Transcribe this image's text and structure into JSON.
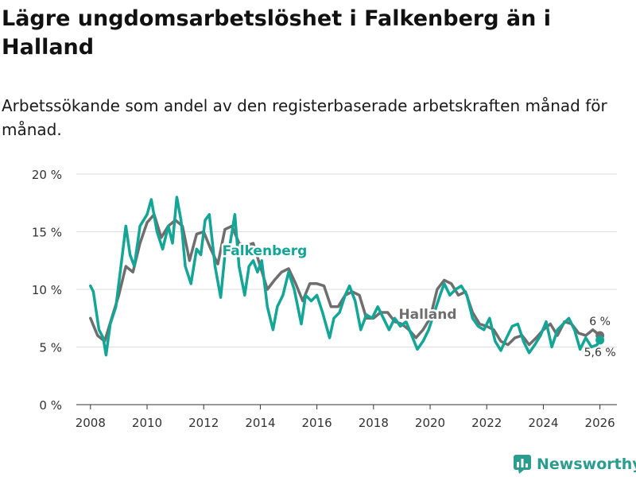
{
  "title": "Lägre ungdomsarbetslöshet i Falkenberg än i Halland",
  "subtitle": "Arbetssökande som andel av den registerbaserade arbetskraften månad för månad.",
  "brand": "Newsworthy",
  "colors": {
    "falkenberg": "#13a596",
    "halland": "#6e6e6e",
    "grid": "#dddddd",
    "brand": "#2a9d8f"
  },
  "chart_data": {
    "type": "line",
    "x_range": [
      2007.5,
      2026.6
    ],
    "ylim": [
      0,
      20
    ],
    "y_ticks": [
      0,
      5,
      10,
      15,
      20
    ],
    "y_tick_labels": [
      "0 %",
      "5 %",
      "10 %",
      "15 %",
      "20 %"
    ],
    "x_ticks": [
      2008,
      2010,
      2012,
      2014,
      2016,
      2018,
      2020,
      2022,
      2024,
      2026
    ],
    "x_tick_labels": [
      "2008",
      "2010",
      "2012",
      "2014",
      "2016",
      "2018",
      "2020",
      "2022",
      "2024",
      "2026"
    ],
    "series": [
      {
        "name": "Halland",
        "label": "Halland",
        "end_label": "6 %",
        "points": [
          [
            2008.0,
            7.5
          ],
          [
            2008.25,
            6.0
          ],
          [
            2008.5,
            5.5
          ],
          [
            2008.75,
            7.5
          ],
          [
            2009.0,
            9.5
          ],
          [
            2009.25,
            12.0
          ],
          [
            2009.5,
            11.5
          ],
          [
            2009.75,
            14.0
          ],
          [
            2010.0,
            15.8
          ],
          [
            2010.25,
            16.5
          ],
          [
            2010.5,
            14.5
          ],
          [
            2010.75,
            15.5
          ],
          [
            2011.0,
            16.0
          ],
          [
            2011.25,
            15.5
          ],
          [
            2011.5,
            12.5
          ],
          [
            2011.75,
            14.8
          ],
          [
            2012.0,
            15.0
          ],
          [
            2012.25,
            13.5
          ],
          [
            2012.5,
            12.2
          ],
          [
            2012.75,
            15.2
          ],
          [
            2013.0,
            15.5
          ],
          [
            2013.25,
            14.0
          ],
          [
            2013.5,
            13.8
          ],
          [
            2013.75,
            14.0
          ],
          [
            2014.0,
            12.0
          ],
          [
            2014.25,
            10.0
          ],
          [
            2014.5,
            10.8
          ],
          [
            2014.75,
            11.5
          ],
          [
            2015.0,
            11.8
          ],
          [
            2015.25,
            10.5
          ],
          [
            2015.5,
            9.0
          ],
          [
            2015.75,
            10.5
          ],
          [
            2016.0,
            10.5
          ],
          [
            2016.25,
            10.3
          ],
          [
            2016.5,
            8.5
          ],
          [
            2016.75,
            8.5
          ],
          [
            2017.0,
            9.5
          ],
          [
            2017.25,
            9.8
          ],
          [
            2017.5,
            9.5
          ],
          [
            2017.75,
            7.5
          ],
          [
            2018.0,
            7.5
          ],
          [
            2018.25,
            8.0
          ],
          [
            2018.5,
            8.0
          ],
          [
            2018.75,
            7.2
          ],
          [
            2019.0,
            7.0
          ],
          [
            2019.25,
            6.5
          ],
          [
            2019.5,
            5.8
          ],
          [
            2019.75,
            6.5
          ],
          [
            2020.0,
            7.5
          ],
          [
            2020.25,
            10.0
          ],
          [
            2020.5,
            10.8
          ],
          [
            2020.75,
            10.5
          ],
          [
            2021.0,
            9.5
          ],
          [
            2021.25,
            9.8
          ],
          [
            2021.5,
            8.0
          ],
          [
            2021.75,
            7.0
          ],
          [
            2022.0,
            6.8
          ],
          [
            2022.25,
            6.5
          ],
          [
            2022.5,
            5.5
          ],
          [
            2022.75,
            5.2
          ],
          [
            2023.0,
            5.8
          ],
          [
            2023.25,
            6.0
          ],
          [
            2023.5,
            5.2
          ],
          [
            2023.75,
            5.8
          ],
          [
            2024.0,
            6.5
          ],
          [
            2024.25,
            7.0
          ],
          [
            2024.5,
            6.0
          ],
          [
            2024.75,
            7.2
          ],
          [
            2025.0,
            7.0
          ],
          [
            2025.25,
            6.2
          ],
          [
            2025.5,
            6.0
          ],
          [
            2025.75,
            6.5
          ],
          [
            2026.0,
            6.0
          ]
        ]
      },
      {
        "name": "Falkenberg",
        "label": "Falkenberg",
        "end_label": "5,6 %",
        "points": [
          [
            2008.0,
            10.3
          ],
          [
            2008.1,
            9.8
          ],
          [
            2008.3,
            6.5
          ],
          [
            2008.45,
            5.8
          ],
          [
            2008.55,
            4.3
          ],
          [
            2008.7,
            7.0
          ],
          [
            2008.9,
            8.5
          ],
          [
            2009.1,
            12.5
          ],
          [
            2009.25,
            15.5
          ],
          [
            2009.4,
            13.0
          ],
          [
            2009.55,
            12.0
          ],
          [
            2009.75,
            15.5
          ],
          [
            2010.0,
            16.5
          ],
          [
            2010.15,
            17.8
          ],
          [
            2010.35,
            15.0
          ],
          [
            2010.55,
            13.5
          ],
          [
            2010.75,
            15.5
          ],
          [
            2010.9,
            14.0
          ],
          [
            2011.05,
            18.0
          ],
          [
            2011.2,
            16.0
          ],
          [
            2011.35,
            12.0
          ],
          [
            2011.55,
            10.5
          ],
          [
            2011.75,
            13.5
          ],
          [
            2011.9,
            13.0
          ],
          [
            2012.05,
            16.0
          ],
          [
            2012.2,
            16.5
          ],
          [
            2012.4,
            12.0
          ],
          [
            2012.6,
            9.3
          ],
          [
            2012.75,
            13.0
          ],
          [
            2012.9,
            13.5
          ],
          [
            2013.1,
            16.5
          ],
          [
            2013.25,
            12.0
          ],
          [
            2013.45,
            9.5
          ],
          [
            2013.6,
            12.0
          ],
          [
            2013.75,
            12.5
          ],
          [
            2013.9,
            11.5
          ],
          [
            2014.05,
            12.5
          ],
          [
            2014.25,
            8.5
          ],
          [
            2014.45,
            6.5
          ],
          [
            2014.6,
            8.5
          ],
          [
            2014.8,
            9.5
          ],
          [
            2015.0,
            11.5
          ],
          [
            2015.2,
            10.0
          ],
          [
            2015.45,
            7.0
          ],
          [
            2015.6,
            9.5
          ],
          [
            2015.8,
            9.0
          ],
          [
            2016.0,
            9.5
          ],
          [
            2016.2,
            8.0
          ],
          [
            2016.45,
            5.8
          ],
          [
            2016.6,
            7.5
          ],
          [
            2016.8,
            8.0
          ],
          [
            2017.0,
            9.5
          ],
          [
            2017.15,
            10.3
          ],
          [
            2017.35,
            9.0
          ],
          [
            2017.55,
            6.5
          ],
          [
            2017.75,
            7.8
          ],
          [
            2017.95,
            7.5
          ],
          [
            2018.15,
            8.5
          ],
          [
            2018.35,
            7.5
          ],
          [
            2018.55,
            6.5
          ],
          [
            2018.75,
            7.5
          ],
          [
            2018.95,
            6.8
          ],
          [
            2019.15,
            7.2
          ],
          [
            2019.35,
            6.0
          ],
          [
            2019.55,
            4.8
          ],
          [
            2019.75,
            5.5
          ],
          [
            2019.95,
            6.5
          ],
          [
            2020.15,
            8.0
          ],
          [
            2020.35,
            9.5
          ],
          [
            2020.5,
            10.5
          ],
          [
            2020.7,
            9.5
          ],
          [
            2020.9,
            10.0
          ],
          [
            2021.1,
            10.3
          ],
          [
            2021.3,
            9.5
          ],
          [
            2021.5,
            7.5
          ],
          [
            2021.7,
            6.8
          ],
          [
            2021.9,
            6.5
          ],
          [
            2022.1,
            7.5
          ],
          [
            2022.3,
            5.5
          ],
          [
            2022.5,
            4.7
          ],
          [
            2022.7,
            5.8
          ],
          [
            2022.9,
            6.8
          ],
          [
            2023.1,
            7.0
          ],
          [
            2023.3,
            5.5
          ],
          [
            2023.5,
            4.5
          ],
          [
            2023.7,
            5.2
          ],
          [
            2023.9,
            6.0
          ],
          [
            2024.1,
            7.2
          ],
          [
            2024.3,
            5.0
          ],
          [
            2024.5,
            6.5
          ],
          [
            2024.7,
            7.0
          ],
          [
            2024.9,
            7.5
          ],
          [
            2025.1,
            6.5
          ],
          [
            2025.3,
            4.8
          ],
          [
            2025.5,
            5.8
          ],
          [
            2025.7,
            5.0
          ],
          [
            2025.9,
            5.2
          ],
          [
            2026.0,
            5.6
          ]
        ]
      }
    ]
  }
}
